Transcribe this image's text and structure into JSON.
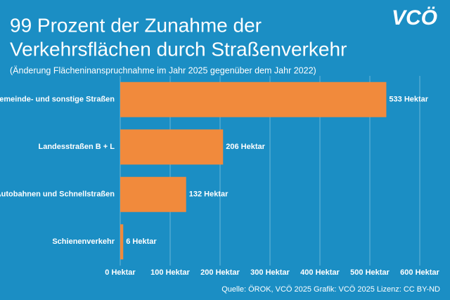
{
  "chart_data": {
    "type": "bar",
    "orientation": "horizontal",
    "title": [
      "99 Prozent der Zunahme der",
      "Verkehrsflächen durch Straßenverkehr"
    ],
    "subtitle": "(Änderung Flächeninanspruchnahme im Jahr 2025 gegenüber dem Jahr 2022)",
    "logo": "VCÖ",
    "source": "Quelle: ÖROK, VCÖ 2025 Grafik: VCÖ 2025 Lizenz: CC BY-ND",
    "categories": [
      "Gemeinde- und sonstige Straßen",
      "Landesstraßen B + L",
      "Autobahnen und Schnellstraßen",
      "Schienenverkehr"
    ],
    "values": [
      533,
      206,
      132,
      6
    ],
    "value_labels": [
      "533 Hektar",
      "206 Hektar",
      "132 Hektar",
      "6 Hektar"
    ],
    "color": "#f18a3c",
    "xlim": [
      0,
      600
    ],
    "xticks": [
      {
        "value": 0,
        "label": "0 Hektar"
      },
      {
        "value": 100,
        "label": "100 Hektar"
      },
      {
        "value": 200,
        "label": "200 Hektar"
      },
      {
        "value": 300,
        "label": "300 Hektar"
      },
      {
        "value": 400,
        "label": "400 Hektar"
      },
      {
        "value": 500,
        "label": "500 Hektar"
      },
      {
        "value": 600,
        "label": "600 Hektar"
      }
    ],
    "grid": true
  }
}
